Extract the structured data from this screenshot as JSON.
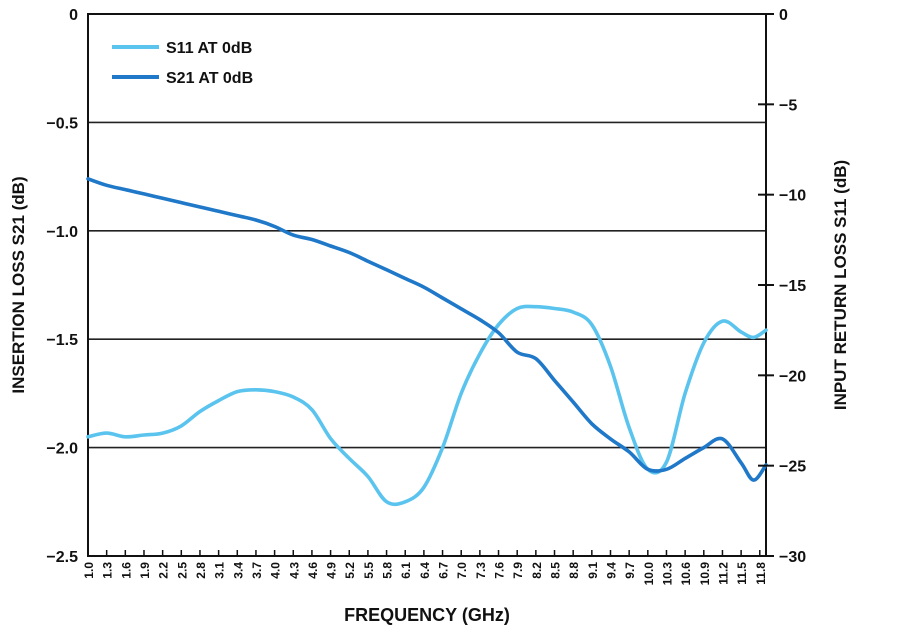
{
  "chart_data": {
    "type": "line",
    "title": "",
    "xlabel": "FREQUENCY (GHz)",
    "ylabel_left": "INSERTION LOSS S21 (dB)",
    "ylabel_right": "INPUT RETURN LOSS S11 (dB)",
    "xlim": [
      1.0,
      11.9
    ],
    "ylim_left": [
      -2.5,
      0
    ],
    "ylim_right": [
      -30,
      0
    ],
    "x_ticks": [
      "1.0",
      "1.3",
      "1.6",
      "1.9",
      "2.2",
      "2.5",
      "2.8",
      "3.1",
      "3.4",
      "3.7",
      "4.0",
      "4.3",
      "4.6",
      "4.9",
      "5.2",
      "5.5",
      "5.8",
      "6.1",
      "6.4",
      "6.7",
      "7.0",
      "7.3",
      "7.6",
      "7.9",
      "8.2",
      "8.5",
      "8.8",
      "9.1",
      "9.4",
      "9.7",
      "10.0",
      "10.3",
      "10.6",
      "10.9",
      "11.2",
      "11.5",
      "11.8"
    ],
    "y_left_ticks": [
      "0",
      "-0.5",
      "-1.0",
      "-1.5",
      "-2.0",
      "-2.5"
    ],
    "y_left_tick_values": [
      0,
      -0.5,
      -1.0,
      -1.5,
      -2.0,
      -2.5
    ],
    "y_right_ticks": [
      "0",
      "-5",
      "-10",
      "-15",
      "-20",
      "-25",
      "-30"
    ],
    "y_right_tick_values": [
      0,
      -5,
      -10,
      -15,
      -20,
      -25,
      -30
    ],
    "grid": "horizontal",
    "legend_position": "top-left",
    "series": [
      {
        "name": "S11 AT 0dB",
        "axis": "right",
        "color": "#5bc4ee",
        "x": [
          1.0,
          1.3,
          1.6,
          1.9,
          2.2,
          2.5,
          2.8,
          3.1,
          3.4,
          3.7,
          4.0,
          4.3,
          4.6,
          4.9,
          5.2,
          5.5,
          5.8,
          6.1,
          6.4,
          6.7,
          7.0,
          7.3,
          7.6,
          7.9,
          8.2,
          8.5,
          8.8,
          9.1,
          9.4,
          9.7,
          10.0,
          10.3,
          10.6,
          10.9,
          11.2,
          11.5,
          11.7,
          11.9
        ],
        "y": [
          -23.4,
          -23.2,
          -23.4,
          -23.3,
          -23.2,
          -22.8,
          -22.0,
          -21.4,
          -20.9,
          -20.8,
          -20.9,
          -21.2,
          -21.9,
          -23.5,
          -24.6,
          -25.6,
          -27.0,
          -27.0,
          -26.2,
          -24.0,
          -21.0,
          -18.8,
          -17.2,
          -16.3,
          -16.2,
          -16.3,
          -16.5,
          -17.2,
          -19.5,
          -22.9,
          -25.2,
          -24.8,
          -21.0,
          -18.2,
          -17.0,
          -17.6,
          -17.9,
          -17.5
        ]
      },
      {
        "name": "S21 AT 0dB",
        "axis": "left",
        "color": "#1f78c8",
        "x": [
          1.0,
          1.3,
          1.6,
          1.9,
          2.2,
          2.5,
          2.8,
          3.1,
          3.4,
          3.7,
          4.0,
          4.3,
          4.6,
          4.9,
          5.2,
          5.5,
          5.8,
          6.1,
          6.4,
          6.7,
          7.0,
          7.3,
          7.6,
          7.9,
          8.2,
          8.5,
          8.8,
          9.1,
          9.4,
          9.7,
          10.0,
          10.3,
          10.6,
          10.9,
          11.2,
          11.5,
          11.7,
          11.9
        ],
        "y": [
          -0.76,
          -0.79,
          -0.81,
          -0.83,
          -0.85,
          -0.87,
          -0.89,
          -0.91,
          -0.93,
          -0.95,
          -0.98,
          -1.02,
          -1.04,
          -1.07,
          -1.1,
          -1.14,
          -1.18,
          -1.22,
          -1.26,
          -1.31,
          -1.36,
          -1.41,
          -1.47,
          -1.56,
          -1.59,
          -1.69,
          -1.79,
          -1.89,
          -1.96,
          -2.02,
          -2.1,
          -2.1,
          -2.05,
          -2.0,
          -1.96,
          -2.07,
          -2.15,
          -2.08
        ]
      }
    ]
  }
}
